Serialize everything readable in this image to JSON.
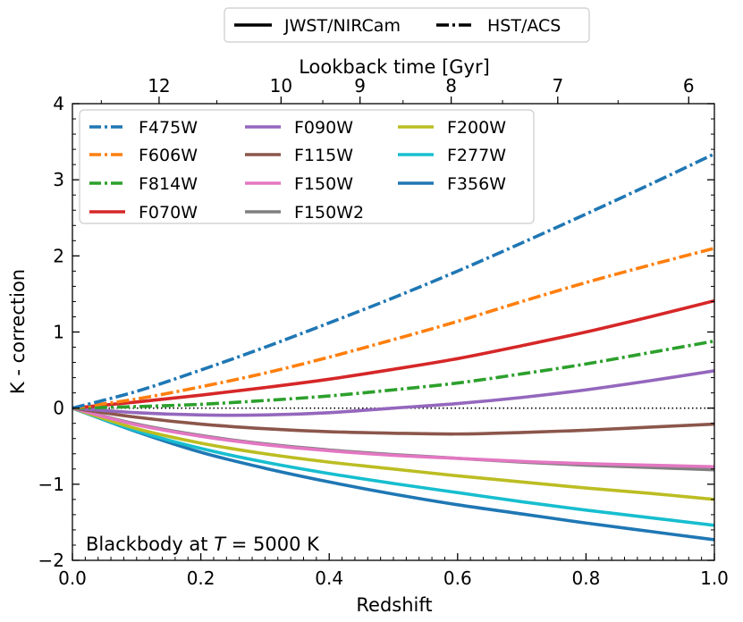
{
  "chart_data": {
    "type": "line",
    "xlabel": "Redshift",
    "ylabel": "K - correction",
    "top_xlabel": "Lookback time [Gyr]",
    "xlim": [
      0.0,
      1.0
    ],
    "ylim": [
      -2,
      4
    ],
    "x_ticks": [
      "0.0",
      "0.2",
      "0.4",
      "0.6",
      "0.8",
      "1.0"
    ],
    "y_ticks": [
      "−2",
      "−1",
      "0",
      "1",
      "2",
      "3",
      "4"
    ],
    "top_ticks": [
      {
        "label": "12",
        "z": 0.135
      },
      {
        "label": "10",
        "z": 0.325
      },
      {
        "label": "9",
        "z": 0.448
      },
      {
        "label": "8",
        "z": 0.59
      },
      {
        "label": "7",
        "z": 0.756
      },
      {
        "label": "6",
        "z": 0.96
      }
    ],
    "annotation": {
      "prefix": "Blackbody at ",
      "symbol": "T",
      "suffix": " = 5000 K"
    },
    "style_legend": [
      {
        "label": "JWST/NIRCam",
        "dash": "solid"
      },
      {
        "label": "HST/ACS",
        "dash": "dashdot"
      }
    ],
    "x": [
      0.0,
      0.1,
      0.2,
      0.3,
      0.4,
      0.5,
      0.6,
      0.7,
      0.8,
      0.9,
      1.0
    ],
    "series": [
      {
        "name": "F475W",
        "color": "#1f77b4",
        "dash": "dashdot",
        "values": [
          0.0,
          0.22,
          0.5,
          0.8,
          1.12,
          1.45,
          1.8,
          2.17,
          2.55,
          2.94,
          3.34
        ]
      },
      {
        "name": "F606W",
        "color": "#ff7f0e",
        "dash": "dashdot",
        "values": [
          0.0,
          0.12,
          0.28,
          0.46,
          0.67,
          0.9,
          1.14,
          1.4,
          1.65,
          1.88,
          2.1
        ]
      },
      {
        "name": "F814W",
        "color": "#2ca02c",
        "dash": "dashdot",
        "values": [
          0.0,
          0.02,
          0.05,
          0.1,
          0.16,
          0.24,
          0.33,
          0.45,
          0.58,
          0.73,
          0.88
        ]
      },
      {
        "name": "F070W",
        "color": "#d62728",
        "dash": "solid",
        "values": [
          0.0,
          0.08,
          0.17,
          0.27,
          0.38,
          0.51,
          0.65,
          0.82,
          1.0,
          1.2,
          1.41
        ]
      },
      {
        "name": "F090W",
        "color": "#9467bd",
        "dash": "solid",
        "values": [
          0.0,
          -0.06,
          -0.09,
          -0.09,
          -0.06,
          0.0,
          0.06,
          0.14,
          0.24,
          0.36,
          0.49
        ]
      },
      {
        "name": "F115W",
        "color": "#8c564b",
        "dash": "solid",
        "values": [
          0.0,
          -0.12,
          -0.21,
          -0.27,
          -0.31,
          -0.33,
          -0.34,
          -0.32,
          -0.29,
          -0.25,
          -0.21
        ]
      },
      {
        "name": "F150W",
        "color": "#e377c2",
        "dash": "solid",
        "values": [
          0.0,
          -0.22,
          -0.37,
          -0.48,
          -0.56,
          -0.62,
          -0.66,
          -0.7,
          -0.73,
          -0.75,
          -0.77
        ]
      },
      {
        "name": "F150W2",
        "color": "#7f7f7f",
        "dash": "solid",
        "values": [
          0.0,
          -0.21,
          -0.36,
          -0.47,
          -0.55,
          -0.61,
          -0.66,
          -0.71,
          -0.75,
          -0.78,
          -0.81
        ]
      },
      {
        "name": "F200W",
        "color": "#bcbd22",
        "dash": "solid",
        "values": [
          0.0,
          -0.27,
          -0.46,
          -0.6,
          -0.71,
          -0.8,
          -0.89,
          -0.97,
          -1.05,
          -1.12,
          -1.2
        ]
      },
      {
        "name": "F277W",
        "color": "#17becf",
        "dash": "solid",
        "values": [
          0.0,
          -0.3,
          -0.53,
          -0.71,
          -0.86,
          -0.99,
          -1.11,
          -1.23,
          -1.34,
          -1.44,
          -1.54
        ]
      },
      {
        "name": "F356W",
        "color": "#1f77b4",
        "dash": "solid",
        "values": [
          0.0,
          -0.31,
          -0.58,
          -0.79,
          -0.97,
          -1.13,
          -1.27,
          -1.39,
          -1.51,
          -1.62,
          -1.73
        ]
      }
    ]
  }
}
